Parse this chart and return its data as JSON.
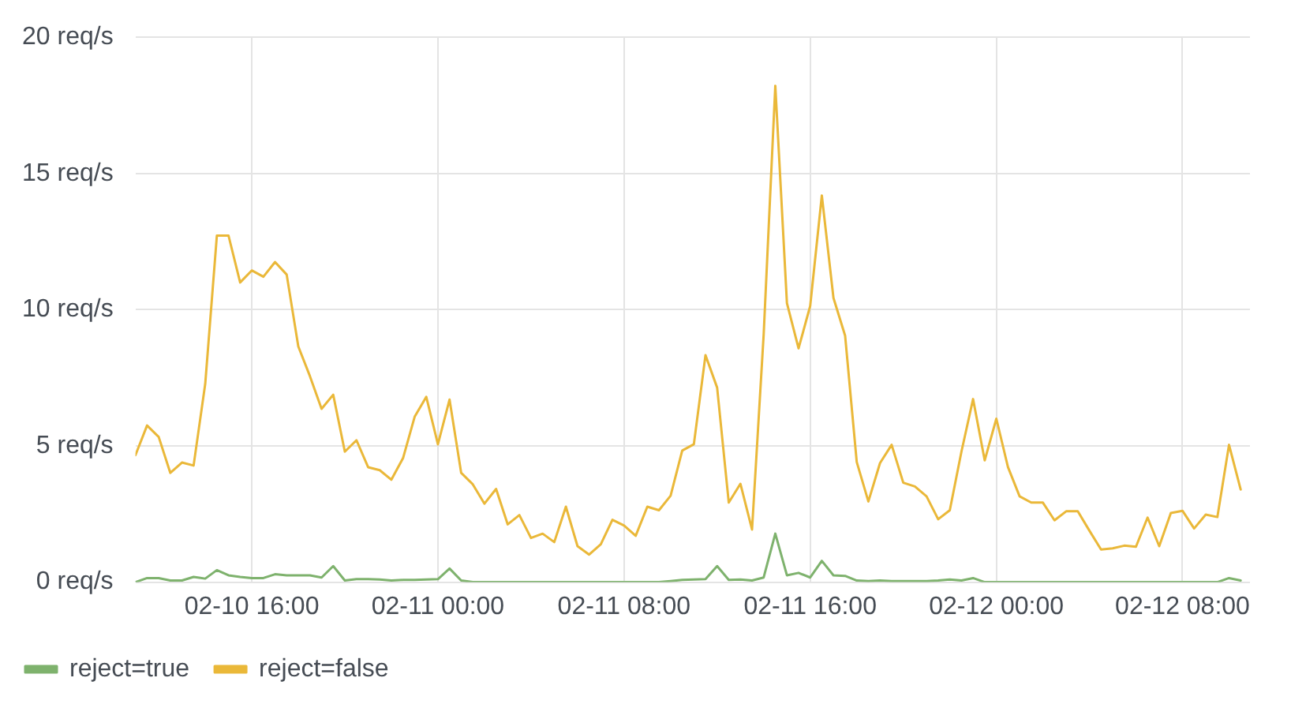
{
  "chart_data": {
    "type": "line",
    "x": [
      "--02-10T11:00",
      "--02-10T11:30",
      "--02-10T12:00",
      "--02-10T12:30",
      "--02-10T13:00",
      "--02-10T13:30",
      "--02-10T14:00",
      "--02-10T14:30",
      "--02-10T15:00",
      "--02-10T15:30",
      "--02-10T16:00",
      "--02-10T16:30",
      "--02-10T17:00",
      "--02-10T17:30",
      "--02-10T18:00",
      "--02-10T18:30",
      "--02-10T19:00",
      "--02-10T19:30",
      "--02-10T20:00",
      "--02-10T20:30",
      "--02-10T21:00",
      "--02-10T21:30",
      "--02-10T22:00",
      "--02-10T22:30",
      "--02-10T23:00",
      "--02-10T23:30",
      "--02-11T00:00",
      "--02-11T00:30",
      "--02-11T01:00",
      "--02-11T01:30",
      "--02-11T02:00",
      "--02-11T02:30",
      "--02-11T03:00",
      "--02-11T03:30",
      "--02-11T04:00",
      "--02-11T04:30",
      "--02-11T05:00",
      "--02-11T05:30",
      "--02-11T06:00",
      "--02-11T06:30",
      "--02-11T07:00",
      "--02-11T07:30",
      "--02-11T08:00",
      "--02-11T08:30",
      "--02-11T09:00",
      "--02-11T09:30",
      "--02-11T10:00",
      "--02-11T10:30",
      "--02-11T11:00",
      "--02-11T11:30",
      "--02-11T12:00",
      "--02-11T12:30",
      "--02-11T13:00",
      "--02-11T13:30",
      "--02-11T14:00",
      "--02-11T14:30",
      "--02-11T15:00",
      "--02-11T15:30",
      "--02-11T16:00",
      "--02-11T16:30",
      "--02-11T17:00",
      "--02-11T17:30",
      "--02-11T18:00",
      "--02-11T18:30",
      "--02-11T19:00",
      "--02-11T19:30",
      "--02-11T20:00",
      "--02-11T20:30",
      "--02-11T21:00",
      "--02-11T21:30",
      "--02-11T22:00",
      "--02-11T22:30",
      "--02-11T23:00",
      "--02-11T23:30",
      "--02-12T00:00",
      "--02-12T00:30",
      "--02-12T01:00",
      "--02-12T01:30",
      "--02-12T02:00",
      "--02-12T02:30",
      "--02-12T03:00",
      "--02-12T03:30",
      "--02-12T04:00",
      "--02-12T04:30",
      "--02-12T05:00",
      "--02-12T05:30",
      "--02-12T06:00",
      "--02-12T06:30",
      "--02-12T07:00",
      "--02-12T07:30",
      "--02-12T08:00",
      "--02-12T08:30",
      "--02-12T09:00",
      "--02-12T09:30",
      "--02-12T10:00",
      "--02-12T10:30"
    ],
    "series": [
      {
        "name": "reject=true",
        "color": "#7eb26d",
        "values": [
          0,
          0.15,
          0.15,
          0.06,
          0.06,
          0.19,
          0.13,
          0.44,
          0.25,
          0.19,
          0.15,
          0.15,
          0.29,
          0.25,
          0.25,
          0.25,
          0.17,
          0.59,
          0.06,
          0.11,
          0.11,
          0.1,
          0.06,
          0.08,
          0.08,
          0.1,
          0.11,
          0.5,
          0.06,
          0,
          0,
          0,
          0,
          0,
          0,
          0,
          0,
          0,
          0,
          0,
          0,
          0,
          0,
          0,
          0,
          0,
          0.04,
          0.08,
          0.1,
          0.11,
          0.59,
          0.08,
          0.1,
          0.06,
          0.17,
          1.78,
          0.25,
          0.34,
          0.17,
          0.78,
          0.25,
          0.23,
          0.06,
          0.04,
          0.06,
          0.04,
          0.04,
          0.04,
          0.04,
          0.06,
          0.1,
          0.06,
          0.15,
          0,
          0,
          0,
          0,
          0,
          0,
          0,
          0,
          0,
          0,
          0,
          0,
          0,
          0,
          0,
          0,
          0,
          0,
          0,
          0,
          0,
          0.15,
          0.06
        ]
      },
      {
        "name": "reject=false",
        "color": "#eab839",
        "values": [
          4.66,
          5.75,
          5.33,
          4.01,
          4.39,
          4.28,
          7.28,
          12.72,
          12.72,
          11.0,
          11.44,
          11.21,
          11.75,
          11.29,
          8.65,
          7.56,
          6.36,
          6.88,
          4.79,
          5.21,
          4.22,
          4.11,
          3.76,
          4.55,
          6.07,
          6.8,
          5.06,
          6.7,
          4.01,
          3.59,
          2.88,
          3.42,
          2.12,
          2.46,
          1.62,
          1.78,
          1.47,
          2.77,
          1.32,
          1.01,
          1.39,
          2.29,
          2.08,
          1.7,
          2.77,
          2.64,
          3.17,
          4.83,
          5.06,
          8.33,
          7.14,
          2.92,
          3.61,
          1.93,
          9.09,
          18.22,
          10.24,
          8.58,
          10.14,
          14.19,
          10.43,
          9.05,
          4.41,
          2.96,
          4.37,
          5.04,
          3.65,
          3.51,
          3.15,
          2.31,
          2.64,
          4.79,
          6.72,
          4.47,
          6.0,
          4.22,
          3.15,
          2.92,
          2.92,
          2.27,
          2.6,
          2.6,
          1.89,
          1.2,
          1.24,
          1.34,
          1.3,
          2.37,
          1.32,
          2.54,
          2.62,
          1.97,
          2.48,
          2.39,
          5.04,
          3.4
        ]
      }
    ],
    "xlim": [
      "--02-10T11:00",
      "--02-12T10:54"
    ],
    "xticks": [
      {
        "value": "--02-10T16:00",
        "label": "02-10 16:00"
      },
      {
        "value": "--02-11T00:00",
        "label": "02-11 00:00"
      },
      {
        "value": "--02-11T08:00",
        "label": "02-11 08:00"
      },
      {
        "value": "--02-11T16:00",
        "label": "02-11 16:00"
      },
      {
        "value": "--02-12T00:00",
        "label": "02-12 00:00"
      },
      {
        "value": "--02-12T08:00",
        "label": "02-12 08:00"
      }
    ],
    "ylim": [
      0,
      20
    ],
    "yticks": [
      {
        "value": 0,
        "label": "0 req/s"
      },
      {
        "value": 5,
        "label": "5 req/s"
      },
      {
        "value": 10,
        "label": "10 req/s"
      },
      {
        "value": 15,
        "label": "15 req/s"
      },
      {
        "value": 20,
        "label": "20 req/s"
      }
    ],
    "grid": true,
    "legend": "bottom left",
    "marker": "none",
    "line_style": "solid"
  }
}
